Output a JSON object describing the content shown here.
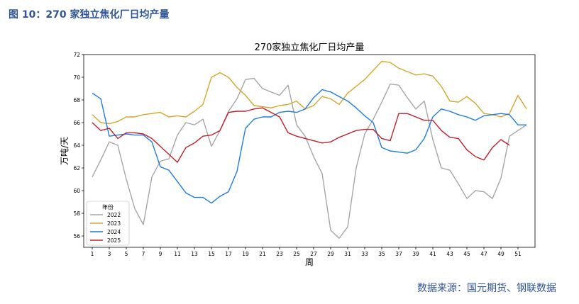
{
  "figure": {
    "caption": "图 10：270 家独立焦化厂日均产量",
    "source": "数据来源：国元期货、钢联数据"
  },
  "chart_data": {
    "type": "line",
    "title": "270家独立焦化厂日均产量",
    "xlabel": "周",
    "ylabel": "万吨/天",
    "xlim": [
      0,
      53
    ],
    "ylim": [
      55,
      72
    ],
    "xticks": [
      1,
      3,
      5,
      7,
      9,
      11,
      13,
      15,
      17,
      19,
      21,
      23,
      25,
      27,
      29,
      31,
      33,
      35,
      37,
      39,
      41,
      43,
      45,
      47,
      49,
      51
    ],
    "yticks": [
      56,
      58,
      60,
      62,
      64,
      66,
      68,
      70,
      72
    ],
    "legend": {
      "title": "年份",
      "placement": "lower-left"
    },
    "series": [
      {
        "name": "2022",
        "color": "#a6a6a6",
        "x": [
          1,
          2,
          3,
          4,
          5,
          6,
          7,
          8,
          9,
          10,
          11,
          12,
          13,
          14,
          15,
          16,
          17,
          18,
          19,
          20,
          21,
          22,
          23,
          24,
          25,
          26,
          27,
          28,
          29,
          30,
          31,
          32,
          33,
          34,
          35,
          36,
          37,
          38,
          39,
          40,
          41,
          42,
          43,
          44,
          45,
          46,
          47,
          48,
          49,
          50,
          51,
          52
        ],
        "values": [
          61.2,
          62.7,
          64.3,
          64.0,
          61.0,
          58.4,
          57.0,
          61.2,
          62.6,
          62.8,
          64.9,
          66.0,
          65.8,
          66.3,
          63.9,
          65.3,
          67.0,
          68.1,
          69.8,
          69.9,
          69.0,
          68.7,
          68.4,
          69.3,
          65.8,
          64.8,
          63.0,
          61.5,
          56.5,
          55.8,
          56.8,
          62.0,
          65.0,
          66.3,
          67.8,
          69.4,
          69.3,
          68.2,
          67.2,
          67.9,
          64.5,
          62.0,
          61.8,
          60.6,
          59.3,
          60.0,
          59.9,
          59.3,
          61.1,
          64.8,
          65.3,
          65.8
        ]
      },
      {
        "name": "2023",
        "color": "#d4a72c",
        "x": [
          1,
          2,
          3,
          4,
          5,
          6,
          7,
          8,
          9,
          10,
          11,
          12,
          13,
          14,
          15,
          16,
          17,
          18,
          19,
          20,
          21,
          22,
          23,
          24,
          25,
          26,
          27,
          28,
          29,
          30,
          31,
          32,
          33,
          34,
          35,
          36,
          37,
          38,
          39,
          40,
          41,
          42,
          43,
          44,
          45,
          46,
          47,
          48,
          49,
          50,
          51,
          52
        ],
        "values": [
          66.7,
          66.0,
          65.9,
          66.1,
          66.5,
          66.5,
          66.7,
          66.8,
          66.9,
          66.5,
          66.6,
          66.5,
          67.0,
          67.6,
          70.0,
          70.4,
          70.0,
          69.1,
          68.4,
          67.5,
          67.4,
          67.3,
          67.5,
          67.6,
          67.9,
          67.2,
          67.5,
          68.3,
          68.1,
          67.6,
          68.6,
          69.2,
          69.8,
          70.6,
          71.4,
          71.3,
          70.8,
          70.5,
          70.2,
          70.3,
          70.1,
          69.2,
          67.9,
          67.8,
          68.3,
          67.7,
          66.8,
          66.7,
          66.5,
          66.8,
          68.4,
          67.2
        ]
      },
      {
        "name": "2024",
        "color": "#1f7de0",
        "x": [
          1,
          2,
          3,
          4,
          5,
          6,
          7,
          8,
          9,
          10,
          11,
          12,
          13,
          14,
          15,
          16,
          17,
          18,
          19,
          20,
          21,
          22,
          23,
          24,
          25,
          26,
          27,
          28,
          29,
          30,
          31,
          32,
          33,
          34,
          35,
          36,
          37,
          38,
          39,
          40,
          41,
          42,
          43,
          44,
          45,
          46,
          47,
          48,
          49,
          50,
          51,
          52
        ],
        "values": [
          68.6,
          68.1,
          64.8,
          64.9,
          65.0,
          64.9,
          64.9,
          64.3,
          62.1,
          61.8,
          60.8,
          59.8,
          59.4,
          59.4,
          58.9,
          59.5,
          59.9,
          61.7,
          65.5,
          66.3,
          66.5,
          66.5,
          66.9,
          67.0,
          66.9,
          67.2,
          68.2,
          68.9,
          68.7,
          68.3,
          67.9,
          67.3,
          66.6,
          66.0,
          63.8,
          63.5,
          63.4,
          63.3,
          63.6,
          64.6,
          66.5,
          67.2,
          67.0,
          66.7,
          66.5,
          66.2,
          66.6,
          66.7,
          66.8,
          66.7,
          65.8,
          65.8
        ]
      },
      {
        "name": "2025",
        "color": "#c0202a",
        "x": [
          1,
          2,
          3,
          4,
          5,
          6,
          7,
          8,
          9,
          10,
          11,
          12,
          13,
          14,
          15,
          16,
          17,
          18,
          19,
          20,
          21,
          22,
          23,
          24,
          25,
          26,
          27,
          28,
          29,
          30,
          31,
          32,
          33,
          34,
          35,
          36,
          37,
          38,
          39,
          40,
          41,
          42,
          43,
          44,
          45,
          46,
          47,
          48,
          49,
          50
        ],
        "values": [
          66.0,
          65.3,
          65.5,
          64.6,
          65.1,
          65.1,
          65.0,
          64.6,
          63.9,
          63.2,
          62.5,
          63.8,
          64.2,
          64.8,
          64.9,
          65.3,
          66.9,
          67.0,
          67.0,
          67.2,
          67.3,
          66.9,
          66.5,
          65.1,
          64.8,
          64.6,
          64.4,
          64.2,
          64.3,
          64.7,
          65.0,
          65.3,
          65.4,
          65.4,
          64.6,
          64.4,
          66.8,
          66.8,
          66.5,
          66.2,
          66.2,
          65.3,
          64.7,
          64.6,
          63.6,
          63.0,
          62.7,
          63.8,
          64.5,
          64.0
        ]
      }
    ]
  }
}
